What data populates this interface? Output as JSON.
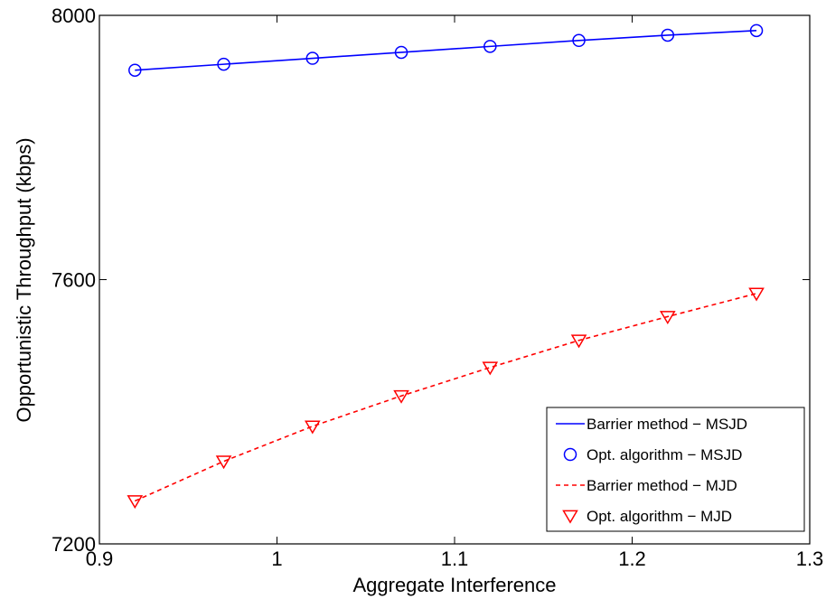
{
  "chart_data": {
    "type": "line",
    "xlabel": "Aggregate Interference",
    "ylabel": "Opportunistic Throughput (kbps)",
    "xlim": [
      0.9,
      1.3
    ],
    "ylim": [
      7200,
      8000
    ],
    "xticks": [
      0.9,
      1.0,
      1.1,
      1.2,
      1.3
    ],
    "xtick_labels": [
      "0.9",
      "1",
      "1.1",
      "1.2",
      "1.3"
    ],
    "yticks": [
      7200,
      7600,
      8000
    ],
    "ytick_labels": [
      "7200",
      "7600",
      "8000"
    ],
    "grid": false,
    "legend_position": "bottom-right",
    "x": [
      0.92,
      0.97,
      1.02,
      1.07,
      1.12,
      1.17,
      1.22,
      1.27
    ],
    "series": [
      {
        "name": "Barrier method − MSJD",
        "style": "line-solid",
        "color": "#0000ff",
        "values": [
          7917,
          7926,
          7935,
          7944,
          7953,
          7962,
          7970,
          7977
        ]
      },
      {
        "name": "Opt. algorithm − MSJD",
        "style": "marker-circle",
        "color": "#0000ff",
        "values": [
          7917,
          7926,
          7935,
          7944,
          7953,
          7962,
          7970,
          7977
        ]
      },
      {
        "name": "Barrier method − MJD",
        "style": "line-dashed",
        "color": "#ff0000",
        "values": [
          7265,
          7325,
          7378,
          7424,
          7467,
          7508,
          7544,
          7579
        ]
      },
      {
        "name": "Opt. algorithm − MJD",
        "style": "marker-triangle-down",
        "color": "#ff0000",
        "values": [
          7265,
          7325,
          7378,
          7424,
          7467,
          7508,
          7544,
          7579
        ]
      }
    ]
  }
}
